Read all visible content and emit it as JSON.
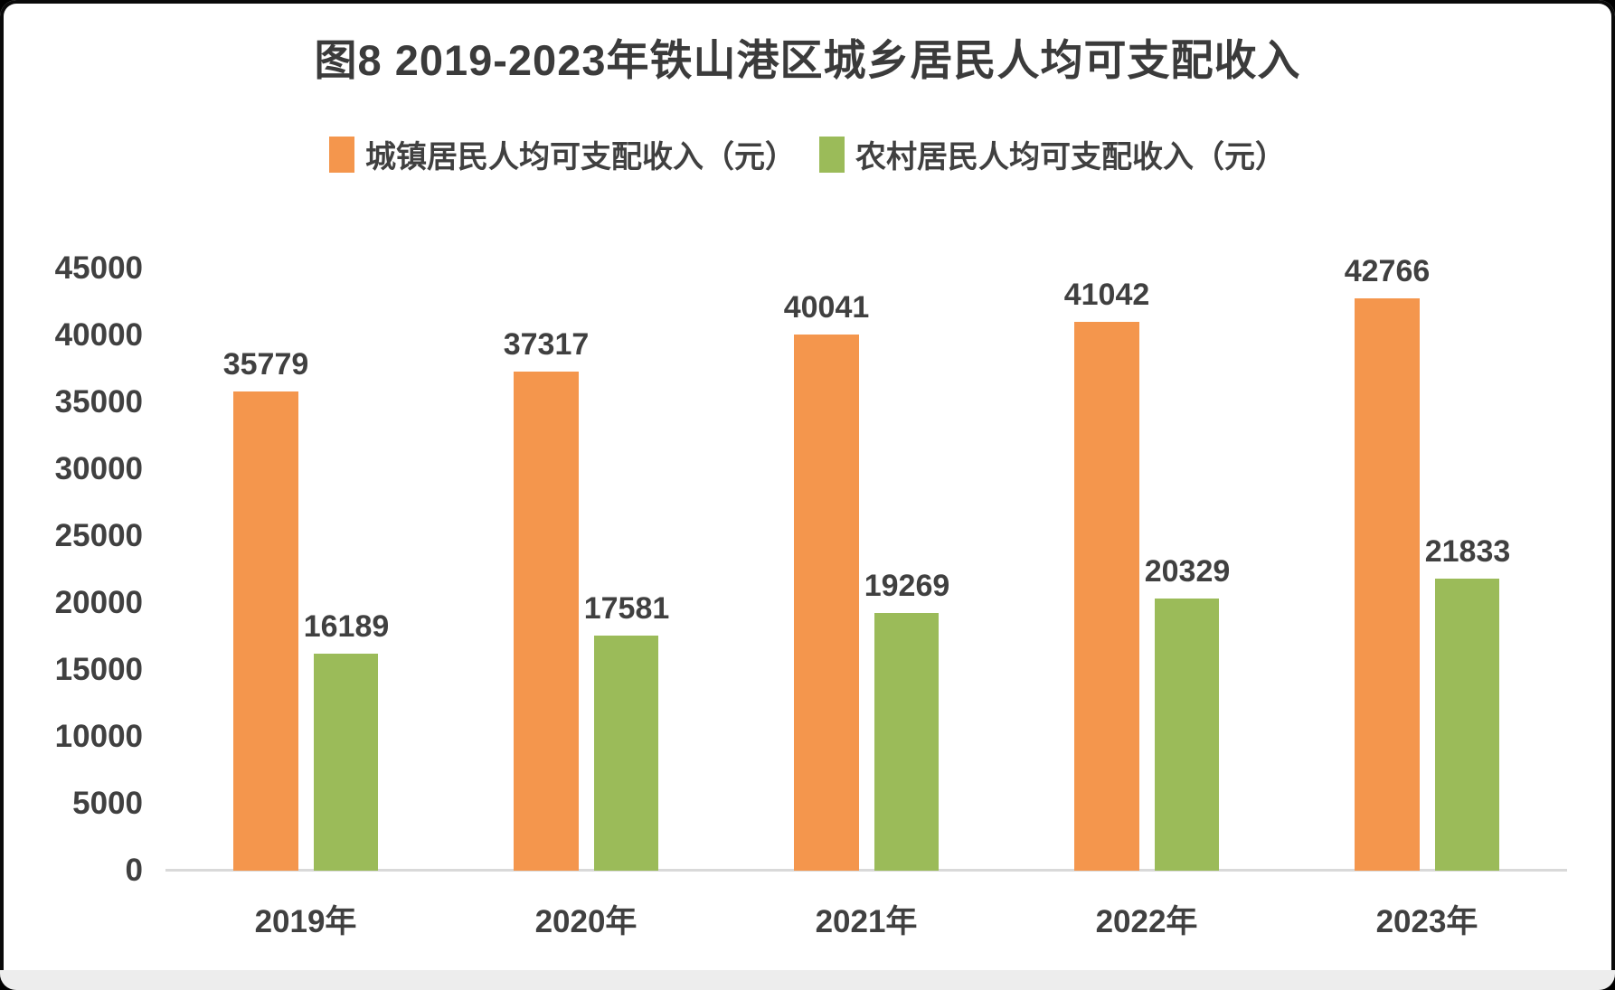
{
  "title": "图8 2019-2023年铁山港区城乡居民人均可支配收入",
  "colors": {
    "urban_bar": "#F4964D",
    "rural_bar": "#9BBB59",
    "text": "#404040",
    "title_text": "#3b3b3b",
    "axis_line": "#d9d9d9"
  },
  "chart_data": {
    "type": "bar",
    "title": "图8 2019-2023年铁山港区城乡居民人均可支配收入",
    "categories": [
      "2019年",
      "2020年",
      "2021年",
      "2022年",
      "2023年"
    ],
    "series": [
      {
        "name": "城镇居民人均可支配收入（元）",
        "color": "#F4964D",
        "values": [
          35779,
          37317,
          40041,
          41042,
          42766
        ]
      },
      {
        "name": "农村居民人均可支配收入（元）",
        "color": "#9BBB59",
        "values": [
          16189,
          17581,
          19269,
          20329,
          21833
        ]
      }
    ],
    "xlabel": "",
    "ylabel": "",
    "ylim": [
      0,
      45000
    ],
    "ytick_step": 5000,
    "yticks": [
      0,
      5000,
      10000,
      15000,
      20000,
      25000,
      30000,
      35000,
      40000,
      45000
    ],
    "grid": false,
    "legend_position": "top",
    "data_labels": true
  }
}
